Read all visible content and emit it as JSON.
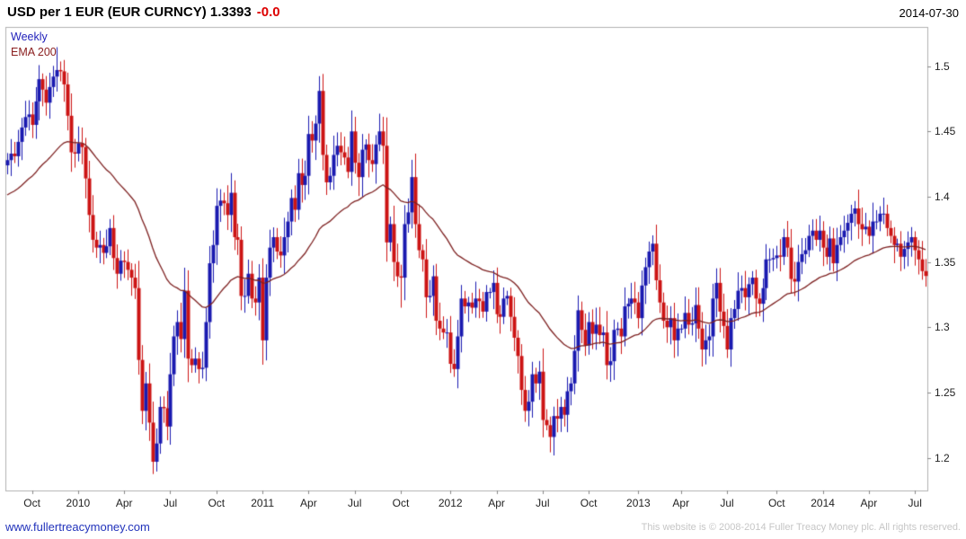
{
  "header": {
    "title": "USD per 1 EUR (EUR CURNCY) 1.3393",
    "change": "-0.0",
    "date": "2014-07-30"
  },
  "legend": {
    "series_label": "Weekly",
    "overlay_label": "EMA 200"
  },
  "footer": {
    "link": "www.fullertreacymoney.com",
    "copyright": "This website is © 2008-2014 Fuller Treacy Money plc. All rights reserved."
  },
  "colors": {
    "up_candle": "#1a1ab0",
    "down_candle": "#cc1414",
    "ema_line": "#7d2020",
    "frame": "#b0b0b0",
    "title_text": "#000000",
    "change_text": "#dd0000",
    "legend_weekly": "#2222bb",
    "legend_ema": "#8b2020",
    "link": "#2233bb",
    "copyright": "#c6c6c6",
    "tick_text": "#222222"
  },
  "chart_data": {
    "type": "candlestick",
    "title": "USD per 1 EUR (EUR CURNCY)",
    "interval": "Weekly",
    "last_close": 1.3393,
    "ylim": [
      1.175,
      1.53
    ],
    "y_ticks": [
      "1.2",
      "1.25",
      "1.3",
      "1.35",
      "1.4",
      "1.45",
      "1.5"
    ],
    "x_ticks": [
      {
        "label": "Oct",
        "i": 7
      },
      {
        "label": "2010",
        "i": 20
      },
      {
        "label": "Apr",
        "i": 33
      },
      {
        "label": "Jul",
        "i": 46
      },
      {
        "label": "Oct",
        "i": 59
      },
      {
        "label": "2011",
        "i": 72
      },
      {
        "label": "Apr",
        "i": 85
      },
      {
        "label": "Jul",
        "i": 98
      },
      {
        "label": "Oct",
        "i": 111
      },
      {
        "label": "2012",
        "i": 125
      },
      {
        "label": "Apr",
        "i": 138
      },
      {
        "label": "Jul",
        "i": 151
      },
      {
        "label": "Oct",
        "i": 164
      },
      {
        "label": "2013",
        "i": 178
      },
      {
        "label": "Apr",
        "i": 190
      },
      {
        "label": "Jul",
        "i": 203
      },
      {
        "label": "Oct",
        "i": 217
      },
      {
        "label": "2014",
        "i": 230
      },
      {
        "label": "Apr",
        "i": 243
      },
      {
        "label": "Jul",
        "i": 256
      }
    ],
    "overlay": {
      "label": "EMA 200",
      "period_weeks": 40,
      "seed": 1.4
    },
    "first_open": 1.424,
    "closes": [
      1.428,
      1.433,
      1.431,
      1.442,
      1.453,
      1.461,
      1.463,
      1.455,
      1.473,
      1.49,
      1.482,
      1.472,
      1.484,
      1.492,
      1.497,
      1.496,
      1.486,
      1.462,
      1.434,
      1.433,
      1.441,
      1.438,
      1.414,
      1.386,
      1.367,
      1.361,
      1.363,
      1.357,
      1.362,
      1.376,
      1.353,
      1.341,
      1.351,
      1.35,
      1.344,
      1.338,
      1.33,
      1.275,
      1.236,
      1.257,
      1.227,
      1.197,
      1.211,
      1.239,
      1.238,
      1.224,
      1.264,
      1.293,
      1.304,
      1.291,
      1.328,
      1.276,
      1.271,
      1.276,
      1.268,
      1.269,
      1.304,
      1.349,
      1.363,
      1.393,
      1.397,
      1.395,
      1.386,
      1.403,
      1.369,
      1.367,
      1.324,
      1.324,
      1.341,
      1.322,
      1.319,
      1.338,
      1.29,
      1.338,
      1.361,
      1.369,
      1.358,
      1.355,
      1.369,
      1.381,
      1.399,
      1.39,
      1.418,
      1.409,
      1.416,
      1.448,
      1.443,
      1.456,
      1.481,
      1.432,
      1.411,
      1.416,
      1.432,
      1.439,
      1.434,
      1.43,
      1.419,
      1.45,
      1.426,
      1.415,
      1.436,
      1.44,
      1.428,
      1.425,
      1.44,
      1.45,
      1.439,
      1.365,
      1.379,
      1.35,
      1.339,
      1.338,
      1.379,
      1.388,
      1.415,
      1.379,
      1.359,
      1.352,
      1.323,
      1.324,
      1.339,
      1.305,
      1.299,
      1.296,
      1.296,
      1.272,
      1.268,
      1.293,
      1.322,
      1.316,
      1.319,
      1.315,
      1.322,
      1.32,
      1.312,
      1.327,
      1.327,
      1.334,
      1.31,
      1.308,
      1.322,
      1.324,
      1.308,
      1.292,
      1.278,
      1.252,
      1.236,
      1.243,
      1.264,
      1.257,
      1.266,
      1.229,
      1.225,
      1.216,
      1.232,
      1.23,
      1.239,
      1.233,
      1.251,
      1.257,
      1.282,
      1.313,
      1.298,
      1.286,
      1.304,
      1.295,
      1.302,
      1.294,
      1.296,
      1.271,
      1.274,
      1.298,
      1.299,
      1.293,
      1.316,
      1.318,
      1.322,
      1.319,
      1.307,
      1.332,
      1.346,
      1.358,
      1.364,
      1.336,
      1.319,
      1.305,
      1.3,
      1.307,
      1.29,
      1.299,
      1.299,
      1.311,
      1.302,
      1.303,
      1.317,
      1.299,
      1.283,
      1.29,
      1.293,
      1.322,
      1.334,
      1.312,
      1.301,
      1.283,
      1.307,
      1.314,
      1.328,
      1.33,
      1.323,
      1.333,
      1.338,
      1.322,
      1.318,
      1.33,
      1.352,
      1.352,
      1.353,
      1.355,
      1.354,
      1.369,
      1.361,
      1.337,
      1.335,
      1.35,
      1.356,
      1.359,
      1.37,
      1.374,
      1.367,
      1.374,
      1.361,
      1.354,
      1.368,
      1.349,
      1.363,
      1.369,
      1.374,
      1.38,
      1.387,
      1.391,
      1.379,
      1.375,
      1.377,
      1.37,
      1.381,
      1.381,
      1.387,
      1.387,
      1.376,
      1.37,
      1.363,
      1.364,
      1.354,
      1.36,
      1.365,
      1.369,
      1.359,
      1.352,
      1.343,
      1.3393
    ],
    "wick_overrides": [
      {
        "i": 14,
        "high": 1.5145
      },
      {
        "i": 41,
        "low": 1.1876
      },
      {
        "i": 89,
        "high": 1.494
      },
      {
        "i": 111,
        "low": 1.315
      },
      {
        "i": 126,
        "low": 1.262
      },
      {
        "i": 153,
        "low": 1.2042
      },
      {
        "i": 239,
        "high": 1.3967
      },
      {
        "i": 247,
        "high": 1.3993
      }
    ]
  }
}
